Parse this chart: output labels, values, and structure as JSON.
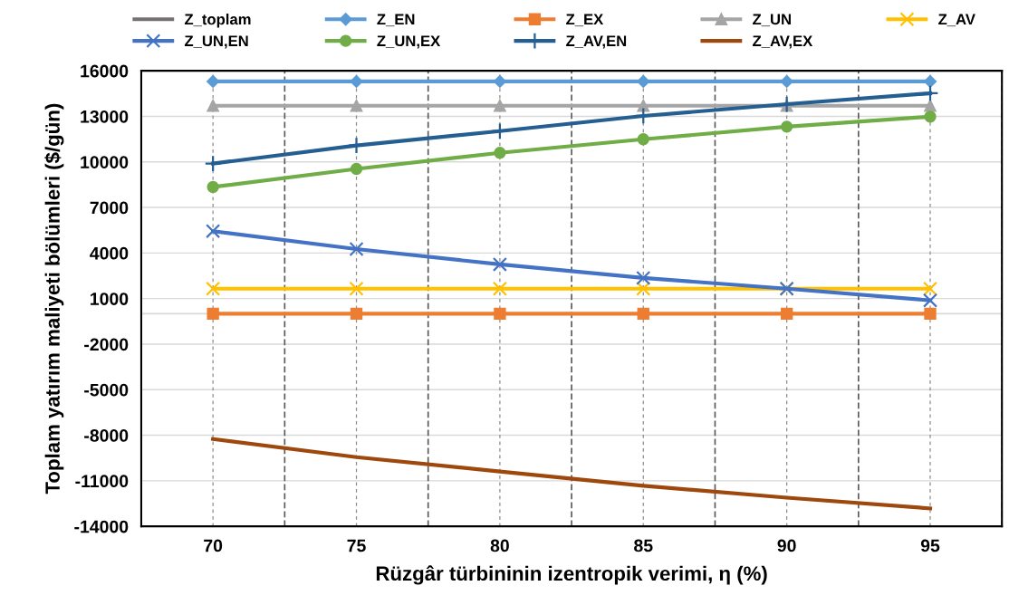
{
  "chart_data": {
    "type": "line",
    "xlabel": "Rüzgâr türbininin izentropik verimi, η (%)",
    "ylabel": "Toplam yatırım maliyeti bölümleri ($/gün)",
    "x": [
      70,
      75,
      80,
      85,
      90,
      95
    ],
    "xlim": [
      67.5,
      97.5
    ],
    "xticks": [
      {
        "value": 67.5,
        "label": null
      },
      70,
      {
        "value": 72.5,
        "label": null
      },
      75,
      {
        "value": 77.5,
        "label": null
      },
      80,
      {
        "value": 82.5,
        "label": null
      },
      85,
      {
        "value": 87.5,
        "label": null
      },
      90,
      {
        "value": 92.5,
        "label": null
      },
      95,
      {
        "value": 97.5,
        "label": null
      }
    ],
    "ylim": [
      -14000,
      16000
    ],
    "yticks": [
      -14000,
      -11000,
      -8000,
      -5000,
      -2000,
      1000,
      4000,
      7000,
      10000,
      13000,
      16000
    ],
    "grid": true,
    "legend": "top",
    "line_style": "solid",
    "ref_lines": [
      {
        "axis": "y",
        "value": 0,
        "color": "#d9d9d9"
      }
    ],
    "series": [
      {
        "name": "Z_toplam",
        "color": "#767171",
        "marker": "none",
        "values": [
          null,
          null,
          null,
          null,
          null,
          null
        ]
      },
      {
        "name": "Z_EN",
        "color": "#5b9bd5",
        "marker": "diamond",
        "values": [
          15300,
          15300,
          15300,
          15300,
          15300,
          15300
        ]
      },
      {
        "name": "Z_EX",
        "color": "#ed7d31",
        "marker": "square",
        "values": [
          0,
          0,
          0,
          0,
          0,
          0
        ]
      },
      {
        "name": "Z_UN",
        "color": "#a5a5a5",
        "marker": "triangle",
        "values": [
          13700,
          13700,
          13700,
          13700,
          13700,
          13700
        ]
      },
      {
        "name": "Z_AV",
        "color": "#ffc000",
        "marker": "cross",
        "values": [
          1650,
          1650,
          1650,
          1650,
          1650,
          1650
        ]
      },
      {
        "name": "Z_UN,EN",
        "color": "#4472c4",
        "marker": "cross",
        "values": [
          5440,
          4260,
          3250,
          2360,
          1650,
          880
        ]
      },
      {
        "name": "Z_UN,EX",
        "color": "#70ad47",
        "marker": "circle",
        "values": [
          8350,
          9540,
          10600,
          11490,
          12320,
          12980
        ]
      },
      {
        "name": "Z_AV,EN",
        "color": "#255e91",
        "marker": "plus",
        "values": [
          9890,
          11080,
          12030,
          13030,
          13800,
          14520
        ]
      },
      {
        "name": "Z_AV,EX",
        "color": "#9e480e",
        "marker": "none",
        "values": [
          -8250,
          -9440,
          -10390,
          -11330,
          -12110,
          -12820
        ]
      }
    ]
  }
}
